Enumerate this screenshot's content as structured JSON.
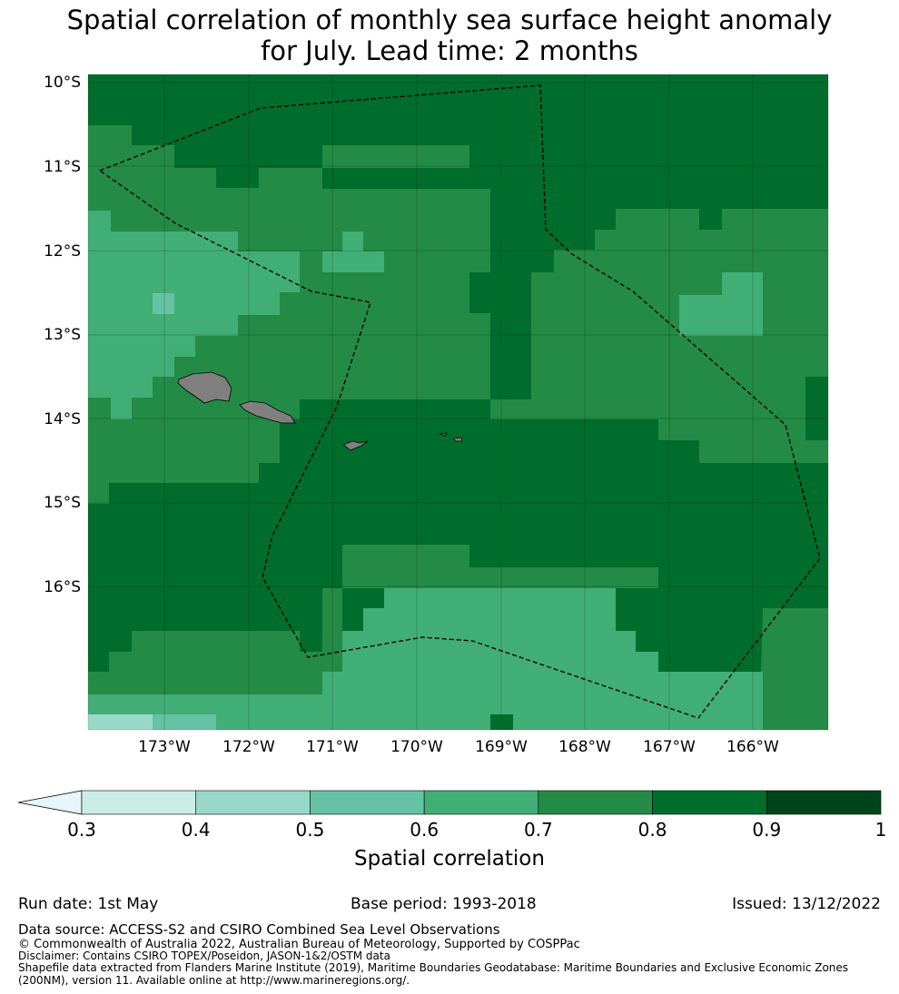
{
  "title": {
    "line1": "Spatial correlation of monthly sea surface height anomaly",
    "line2": "for July. Lead time: 2 months"
  },
  "map": {
    "lat_labels": [
      "10°S",
      "11°S",
      "12°S",
      "13°S",
      "14°S",
      "15°S",
      "16°S"
    ],
    "lon_labels": [
      "173°W",
      "172°W",
      "171°W",
      "170°W",
      "169°W",
      "168°W",
      "167°W",
      "166°W"
    ]
  },
  "colorbar": {
    "label": "Spatial correlation",
    "ticks": [
      "0.3",
      "0.4",
      "0.5",
      "0.6",
      "0.7",
      "0.8",
      "0.9",
      "1"
    ],
    "colors": [
      "#e5f5f9",
      "#ccece6",
      "#99d8c9",
      "#66c2a4",
      "#41ae76",
      "#238b45",
      "#006d2c",
      "#00441b"
    ]
  },
  "footer": {
    "run_date": "Run date: 1st May",
    "base_period": "Base period: 1993-2018",
    "issued": "Issued: 13/12/2022",
    "data_source": "Data source: ACCESS-S2 and CSIRO Combined Sea Level Observations",
    "copyright": "© Commonwealth of Australia 2022, Australian Bureau of Meteorology, Supported by COSPPac",
    "disclaimer": "Disclaimer: Contains CSIRO TOPEX/Poseidon, JASON-1&2/OSTM data",
    "shapefile1": "Shapefile data extracted from Flanders Marine Institute (2019), Maritime Boundaries Geodatabase: Maritime Boundaries and Exclusive Economic Zones",
    "shapefile2": "(200NM), version 11. Available online at http://www.marineregions.org/."
  }
}
